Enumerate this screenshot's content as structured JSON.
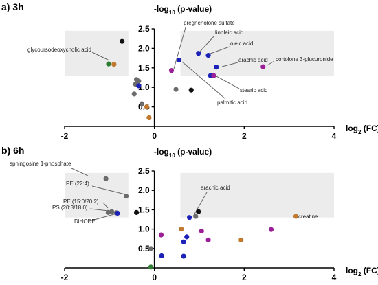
{
  "colors": {
    "grey": "#6b6b6b",
    "black": "#111111",
    "blue": "#1c22b8",
    "purple": "#9b1f96",
    "orange": "#c07a30",
    "green": "#2e7d32",
    "region": "#ececec"
  },
  "chart_data": [
    {
      "type": "scatter",
      "panel_label": "a) 3h",
      "ylabel_main": "-log",
      "ylabel_sub": "10",
      "ylabel_rest": " (p-value)",
      "xlabel_main": "log",
      "xlabel_sub": "2",
      "xlabel_rest": " (FC)",
      "xlim": [
        -2,
        4
      ],
      "ylim": [
        0,
        2.5
      ],
      "xticks": [
        "-2",
        "0",
        "2",
        "4"
      ],
      "yticks": [
        "0.5",
        "1.0",
        "1.5",
        "2.0",
        "2.5"
      ],
      "significance_regions": [
        {
          "x": [
            -2,
            -0.58
          ],
          "y": [
            1.3,
            2.45
          ]
        },
        {
          "x": [
            0.58,
            4
          ],
          "y": [
            1.3,
            2.45
          ]
        }
      ],
      "points": [
        {
          "x": -0.72,
          "y": 2.18,
          "color": "black"
        },
        {
          "x": -1.02,
          "y": 1.6,
          "color": "green",
          "label": "glycoursodeoxycholic acid"
        },
        {
          "x": -0.9,
          "y": 1.59,
          "color": "orange"
        },
        {
          "x": -0.4,
          "y": 1.2,
          "color": "grey"
        },
        {
          "x": -0.35,
          "y": 1.16,
          "color": "grey"
        },
        {
          "x": -0.42,
          "y": 1.08,
          "color": "grey"
        },
        {
          "x": -0.35,
          "y": 1.04,
          "color": "blue"
        },
        {
          "x": -0.45,
          "y": 0.83,
          "color": "grey"
        },
        {
          "x": -0.28,
          "y": 0.58,
          "color": "grey"
        },
        {
          "x": -0.17,
          "y": 0.5,
          "color": "orange"
        },
        {
          "x": -0.12,
          "y": 0.22,
          "color": "orange"
        },
        {
          "x": 0.38,
          "y": 1.43,
          "color": "purple",
          "label": "pregnenolone sulfate"
        },
        {
          "x": 0.55,
          "y": 1.7,
          "color": "blue",
          "label": "palmitic acid"
        },
        {
          "x": 0.48,
          "y": 0.95,
          "color": "grey"
        },
        {
          "x": 0.82,
          "y": 0.93,
          "color": "black"
        },
        {
          "x": 0.98,
          "y": 1.87,
          "color": "blue",
          "label": "linoleic acid"
        },
        {
          "x": 1.2,
          "y": 1.82,
          "color": "blue",
          "label": "oleic acid"
        },
        {
          "x": 1.25,
          "y": 1.3,
          "color": "blue",
          "label": "stearic acid"
        },
        {
          "x": 1.32,
          "y": 1.3,
          "color": "purple"
        },
        {
          "x": 1.38,
          "y": 1.52,
          "color": "blue",
          "label": "arachic acid"
        },
        {
          "x": 2.42,
          "y": 1.53,
          "color": "purple",
          "label": "cortolone 3-glucuronide"
        }
      ]
    },
    {
      "type": "scatter",
      "panel_label": "b) 6h",
      "ylabel_main": "-log",
      "ylabel_sub": "10",
      "ylabel_rest": " (p-value)",
      "xlabel_main": "log",
      "xlabel_sub": "2",
      "xlabel_rest": " (FC)",
      "xlim": [
        -2,
        4
      ],
      "ylim": [
        0,
        2.5
      ],
      "xticks": [
        "-2",
        "0",
        "2",
        "4"
      ],
      "yticks": [
        "0.5",
        "1.0",
        "1.5",
        "2.0",
        "2.5"
      ],
      "significance_regions": [
        {
          "x": [
            -2,
            -0.58
          ],
          "y": [
            1.3,
            2.45
          ]
        },
        {
          "x": [
            0.58,
            4
          ],
          "y": [
            1.3,
            2.45
          ]
        }
      ],
      "points": [
        {
          "x": -1.08,
          "y": 2.3,
          "color": "grey",
          "label": "sphingosine 1-phosphate"
        },
        {
          "x": -0.63,
          "y": 1.85,
          "color": "grey",
          "label": "PE (22:4)"
        },
        {
          "x": -1.03,
          "y": 1.43,
          "color": "grey",
          "label": "PE (15:0/20:2)"
        },
        {
          "x": -0.95,
          "y": 1.45,
          "color": "grey"
        },
        {
          "x": -0.85,
          "y": 1.42,
          "color": "grey",
          "label": "PS (20:3/18:0)"
        },
        {
          "x": -0.82,
          "y": 1.41,
          "color": "blue",
          "label": "DiHODE"
        },
        {
          "x": -0.4,
          "y": 1.43,
          "color": "black"
        },
        {
          "x": -0.08,
          "y": 0.5,
          "color": "grey"
        },
        {
          "x": -0.08,
          "y": 0.02,
          "color": "green"
        },
        {
          "x": 0.15,
          "y": 0.85,
          "color": "purple"
        },
        {
          "x": 0.16,
          "y": 0.31,
          "color": "blue"
        },
        {
          "x": 0.6,
          "y": 1.0,
          "color": "orange"
        },
        {
          "x": 0.65,
          "y": 0.67,
          "color": "blue"
        },
        {
          "x": 0.65,
          "y": 0.3,
          "color": "blue"
        },
        {
          "x": 0.72,
          "y": 0.8,
          "color": "blue"
        },
        {
          "x": 0.78,
          "y": 1.3,
          "color": "blue",
          "label": "arachic acid"
        },
        {
          "x": 0.92,
          "y": 1.33,
          "color": "grey"
        },
        {
          "x": 0.98,
          "y": 1.45,
          "color": "black"
        },
        {
          "x": 1.05,
          "y": 0.95,
          "color": "purple"
        },
        {
          "x": 1.2,
          "y": 0.72,
          "color": "purple"
        },
        {
          "x": 1.93,
          "y": 0.72,
          "color": "orange"
        },
        {
          "x": 2.6,
          "y": 0.99,
          "color": "purple"
        },
        {
          "x": 3.15,
          "y": 1.33,
          "color": "orange",
          "label": "creatine"
        }
      ]
    }
  ]
}
